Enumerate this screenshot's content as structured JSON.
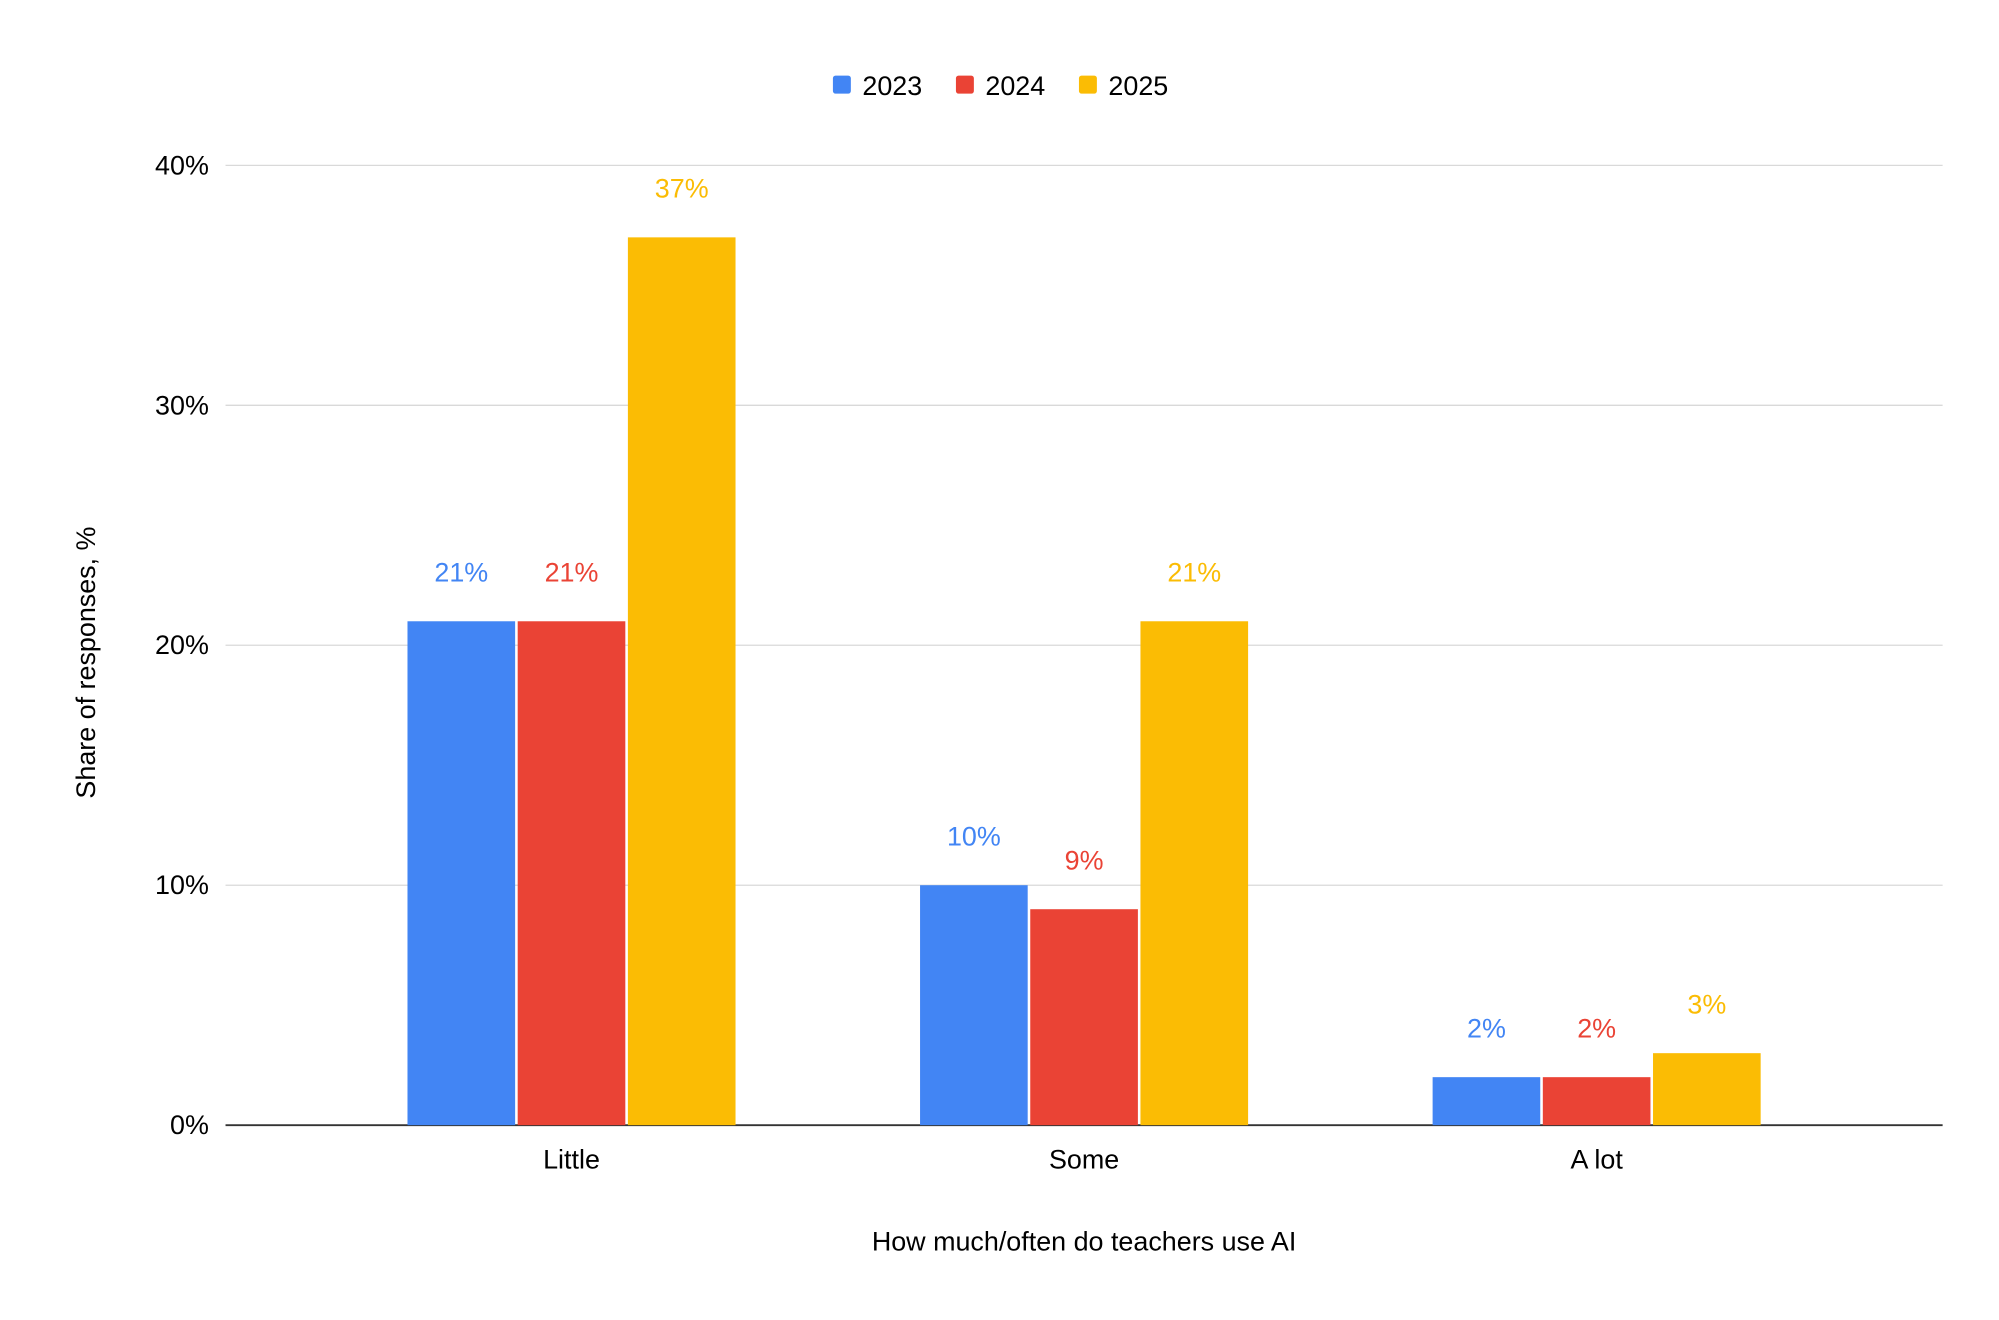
{
  "chart_data": {
    "type": "bar",
    "title": "",
    "xlabel": "How much/often do teachers use AI",
    "ylabel": "Share of responses, %",
    "categories": [
      "Little",
      "Some",
      "A lot"
    ],
    "series": [
      {
        "name": "2023",
        "color": "#4285f4",
        "values": [
          21,
          10,
          2
        ],
        "labels": [
          "21%",
          "10%",
          "2%"
        ]
      },
      {
        "name": "2024",
        "color": "#ea4335",
        "values": [
          21,
          9,
          2
        ],
        "labels": [
          "21%",
          "9%",
          "2%"
        ]
      },
      {
        "name": "2025",
        "color": "#fbbc04",
        "values": [
          37,
          21,
          3
        ],
        "labels": [
          "37%",
          "21%",
          "3%"
        ]
      }
    ],
    "ylim": [
      0,
      40
    ],
    "yticks": [
      0,
      10,
      20,
      30,
      40
    ],
    "ytick_labels": [
      "0%",
      "10%",
      "20%",
      "30%",
      "40%"
    ],
    "grid": true,
    "legend_position": "top-center"
  }
}
